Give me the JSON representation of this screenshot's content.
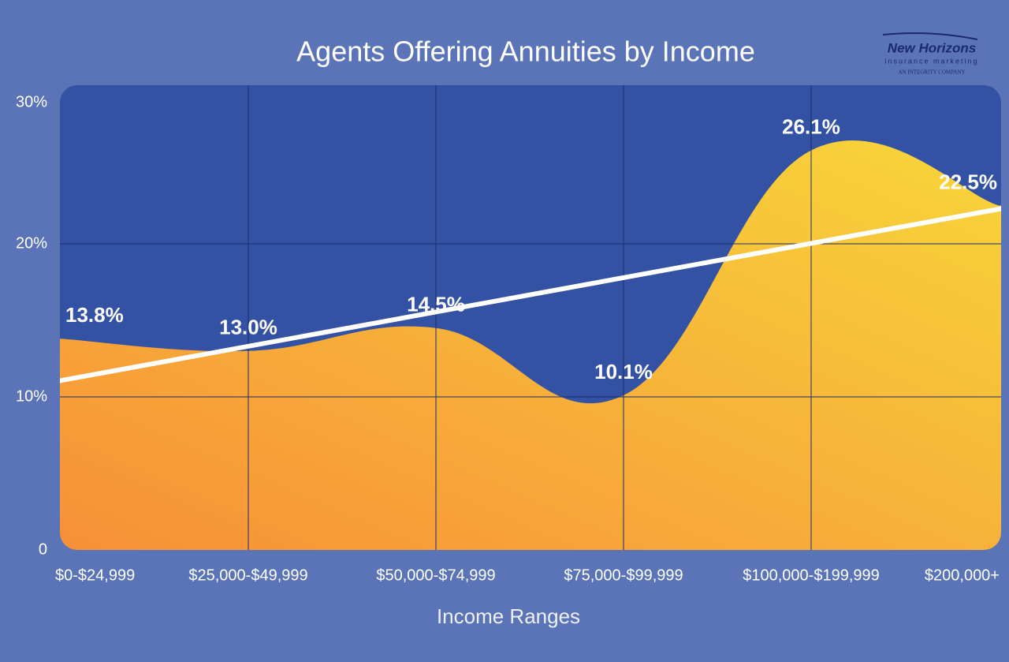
{
  "chart_data": {
    "type": "area",
    "title": "Agents Offering Annuities by Income",
    "x_label": "Income Ranges",
    "categories": [
      "$0-$24,999",
      "$25,000-$49,999",
      "$50,000-$74,999",
      "$75,000-$99,999",
      "$100,000-$199,999",
      "$200,000+"
    ],
    "values": [
      13.8,
      13.0,
      14.5,
      10.1,
      26.1,
      22.5
    ],
    "value_labels": [
      "13.8%",
      "13.0%",
      "14.5%",
      "10.1%",
      "26.1%",
      "22.5%"
    ],
    "color": [
      "#f78f38",
      "#f7d63a"
    ],
    "trendline": true,
    "ylim": [
      0,
      30
    ],
    "yticks": [
      0,
      {
        "value": 10,
        "label": "10%"
      },
      {
        "value": 20,
        "label": "20%"
      },
      {
        "value": 30,
        "label": "30%"
      }
    ],
    "grid": true
  },
  "logo": {
    "name": "New Horizons",
    "tagline": "insurance marketing",
    "sub": "AN INTEGRITY COMPANY"
  }
}
